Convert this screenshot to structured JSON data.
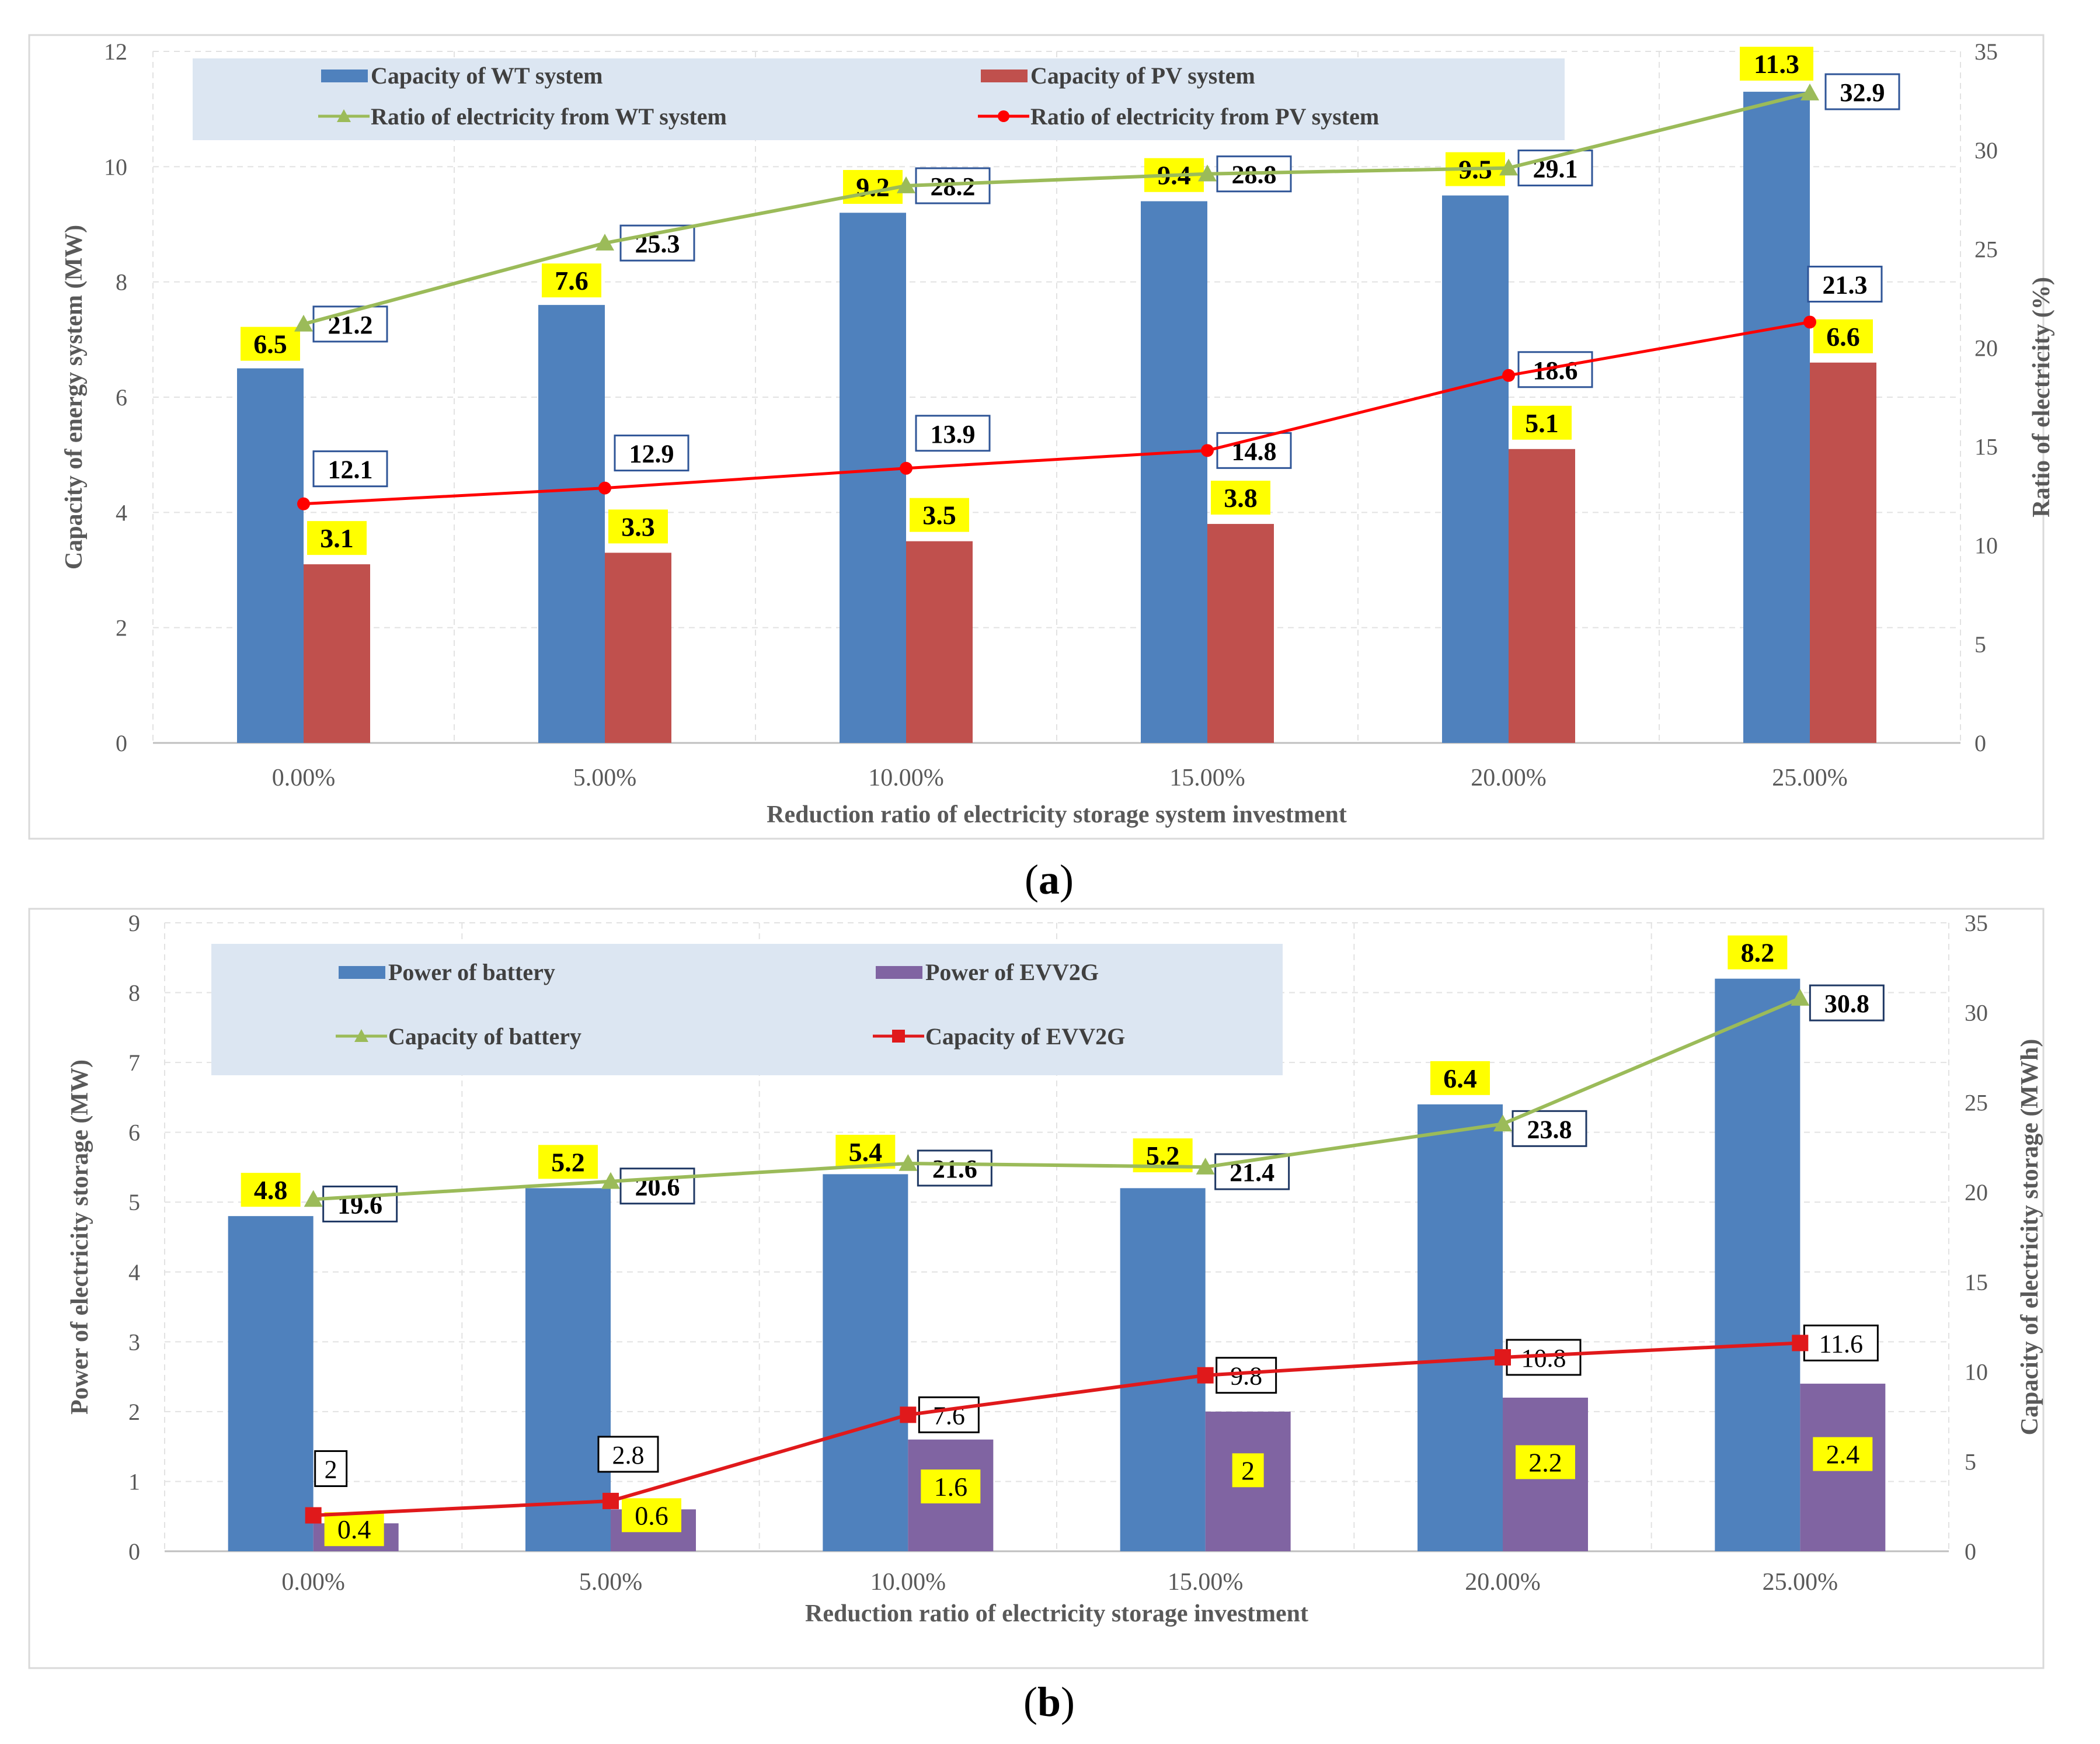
{
  "chart_data": [
    {
      "type": "bar",
      "panel": "a",
      "caption_letter": "a",
      "categories": [
        "0.00%",
        "5.00%",
        "10.00%",
        "15.00%",
        "20.00%",
        "25.00%"
      ],
      "xlabel": "Reduction ratio of electricity storage system investment",
      "ylabel": "Capacity of energy system (MW)",
      "y2label": "Ratio of electricity (%)",
      "ylim": [
        0,
        12
      ],
      "yticks": [
        0,
        2,
        4,
        6,
        8,
        10,
        12
      ],
      "y2lim": [
        0,
        35
      ],
      "y2ticks": [
        0,
        5,
        10,
        15,
        20,
        25,
        30,
        35
      ],
      "series": [
        {
          "name": "Capacity of WT system",
          "kind": "bar",
          "axis": "left",
          "color": "#4f81bd",
          "values": [
            6.5,
            7.6,
            9.2,
            9.4,
            9.5,
            11.3
          ],
          "labels": [
            "6.5",
            "7.6",
            "9.2",
            "9.4",
            "9.5",
            "11.3"
          ]
        },
        {
          "name": "Capacity of PV system",
          "kind": "bar",
          "axis": "left",
          "color": "#c0504d",
          "values": [
            3.1,
            3.3,
            3.5,
            3.8,
            5.1,
            6.6
          ],
          "labels": [
            "3.1",
            "3.3",
            "3.5",
            "3.8",
            "5.1",
            "6.6"
          ]
        },
        {
          "name": "Ratio of electricity from WT system",
          "kind": "line",
          "marker": "triangle",
          "axis": "right",
          "color": "#9bbb59",
          "values": [
            21.2,
            25.3,
            28.2,
            28.8,
            29.1,
            32.9
          ],
          "labels": [
            "21.2",
            "25.3",
            "28.2",
            "28.8",
            "29.1",
            "32.9"
          ]
        },
        {
          "name": "Ratio of electricity from PV system",
          "kind": "line",
          "marker": "circle",
          "axis": "right",
          "color": "#ff0000",
          "values": [
            12.1,
            12.9,
            13.9,
            14.8,
            18.6,
            21.3
          ],
          "labels": [
            "12.1",
            "12.9",
            "13.9",
            "14.8",
            "18.6",
            "21.3"
          ]
        }
      ]
    },
    {
      "type": "bar",
      "panel": "b",
      "caption_letter": "b",
      "categories": [
        "0.00%",
        "5.00%",
        "10.00%",
        "15.00%",
        "20.00%",
        "25.00%"
      ],
      "xlabel": "Reduction ratio of electricity storage investment",
      "ylabel": "Power of electricity storage (MW)",
      "y2label": "Capacity of electricity storage (MWh)",
      "ylim": [
        0,
        9
      ],
      "yticks": [
        0,
        1,
        2,
        3,
        4,
        5,
        6,
        7,
        8,
        9
      ],
      "y2lim": [
        0,
        35
      ],
      "y2ticks": [
        0,
        5,
        10,
        15,
        20,
        25,
        30,
        35
      ],
      "series": [
        {
          "name": "Power of battery",
          "kind": "bar",
          "axis": "left",
          "color": "#4f81bd",
          "values": [
            4.8,
            5.2,
            5.4,
            5.2,
            6.4,
            8.2
          ],
          "labels": [
            "4.8",
            "5.2",
            "5.4",
            "5.2",
            "6.4",
            "8.2"
          ]
        },
        {
          "name": "Power of EVV2G",
          "kind": "bar",
          "axis": "left",
          "color": "#8064a2",
          "values": [
            0.4,
            0.6,
            1.6,
            2,
            2.2,
            2.4
          ],
          "labels": [
            "0.4",
            "0.6",
            "1.6",
            "2",
            "2.2",
            "2.4"
          ]
        },
        {
          "name": "Capacity of battery",
          "kind": "line",
          "marker": "triangle",
          "axis": "right",
          "color": "#9bbb59",
          "values": [
            19.6,
            20.6,
            21.6,
            21.4,
            23.8,
            30.8
          ],
          "labels": [
            "19.6",
            "20.6",
            "21.6",
            "21.4",
            "23.8",
            "30.8"
          ]
        },
        {
          "name": "Capacity of EVV2G",
          "kind": "line",
          "marker": "square",
          "axis": "right",
          "color": "#e0191b",
          "values": [
            2,
            2.8,
            7.6,
            9.8,
            10.8,
            11.6
          ],
          "labels": [
            "2",
            "2.8",
            "7.6",
            "9.8",
            "10.8",
            "11.6"
          ]
        }
      ]
    }
  ]
}
